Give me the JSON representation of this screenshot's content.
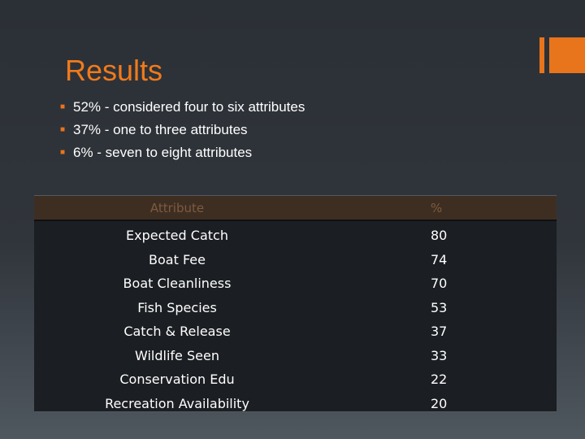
{
  "slide": {
    "title": "Results",
    "bullets": [
      "52% - considered four to six attributes",
      "37% - one to three attributes",
      "6% - seven to eight attributes"
    ]
  },
  "table": {
    "headers": [
      "Attribute",
      "%"
    ],
    "rows": [
      {
        "attribute": "Expected Catch",
        "pct": "80"
      },
      {
        "attribute": "Boat Fee",
        "pct": "74"
      },
      {
        "attribute": "Boat Cleanliness",
        "pct": "70"
      },
      {
        "attribute": "Fish Species",
        "pct": "53"
      },
      {
        "attribute": "Catch & Release",
        "pct": "37"
      },
      {
        "attribute": "Wildlife Seen",
        "pct": "33"
      },
      {
        "attribute": "Conservation Edu",
        "pct": "22"
      },
      {
        "attribute": "Recreation Availability",
        "pct": "20"
      }
    ]
  },
  "colors": {
    "accent": "#e8741c",
    "title": "#f07a1c",
    "background": "#2b3036",
    "table_bg": "#1b1e22",
    "header_bg": "#3e2e22",
    "header_text": "#7d5b3e"
  }
}
